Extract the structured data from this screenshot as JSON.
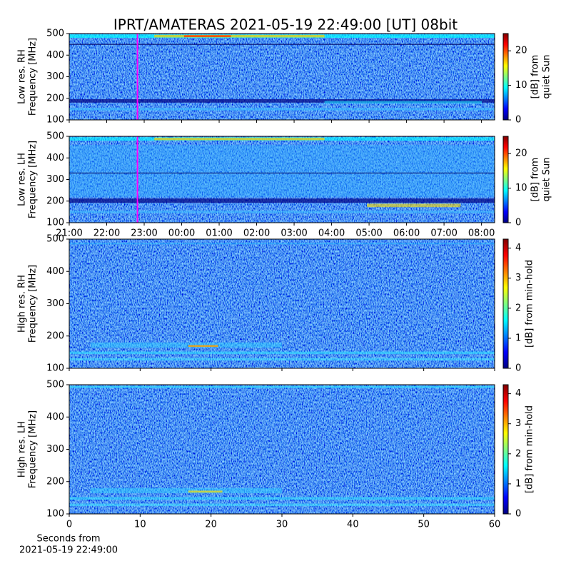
{
  "title": "IPRT/AMATERAS 2021-05-19 22:49:00 [UT]   08bit",
  "chart_data": [
    {
      "type": "spectrogram",
      "ylabel": [
        "Low res. RH",
        "Frequency [MHz]"
      ],
      "ylim": [
        100,
        500
      ],
      "yticks": [
        100,
        200,
        300,
        400,
        500
      ],
      "xlim": [
        21,
        32.35
      ],
      "marker_x": 22.82,
      "marker_color": "#ff00ff",
      "colorbar_label": [
        "[dB] from",
        "quiet Sun"
      ],
      "clim": [
        0,
        25
      ],
      "cticks": [
        0,
        10,
        20
      ]
    },
    {
      "type": "spectrogram",
      "ylabel": [
        "Low res. LH",
        "Frequency [MHz]"
      ],
      "ylim": [
        100,
        500
      ],
      "yticks": [
        100,
        200,
        300,
        400,
        500
      ],
      "xlim": [
        21,
        32.35
      ],
      "xticks": [
        {
          "value": 21,
          "label": "21:00"
        },
        {
          "value": 22,
          "label": "22:00"
        },
        {
          "value": 23,
          "label": "23:00"
        },
        {
          "value": 24,
          "label": "00:00"
        },
        {
          "value": 25,
          "label": "01:00"
        },
        {
          "value": 26,
          "label": "02:00"
        },
        {
          "value": 27,
          "label": "03:00"
        },
        {
          "value": 28,
          "label": "04:00"
        },
        {
          "value": 29,
          "label": "05:00"
        },
        {
          "value": 30,
          "label": "06:00"
        },
        {
          "value": 31,
          "label": "07:00"
        },
        {
          "value": 32,
          "label": "08:00"
        }
      ],
      "marker_x": 22.82,
      "marker_color": "#ff00ff",
      "colorbar_label": [
        "[dB] from",
        "quiet Sun"
      ],
      "clim": [
        0,
        25
      ],
      "cticks": [
        0,
        10,
        20
      ]
    },
    {
      "type": "spectrogram",
      "ylabel": [
        "High res. RH",
        "Frequency [MHz]"
      ],
      "ylim": [
        100,
        500
      ],
      "yticks": [
        100,
        200,
        300,
        400,
        500
      ],
      "xlim": [
        0,
        60
      ],
      "colorbar_label": [
        "[dB] from min-hold"
      ],
      "clim": [
        0,
        4.3
      ],
      "cticks": [
        0,
        1,
        2,
        3,
        4
      ]
    },
    {
      "type": "spectrogram",
      "ylabel": [
        "High res. LH",
        "Frequency [MHz]"
      ],
      "ylim": [
        100,
        500
      ],
      "yticks": [
        100,
        200,
        300,
        400,
        500
      ],
      "xlim": [
        0,
        60
      ],
      "xticks": [
        0,
        10,
        20,
        30,
        40,
        50,
        60
      ],
      "xlabel": [
        "Seconds from",
        "2021-05-19 22:49:00"
      ],
      "colorbar_label": [
        "[dB] from min-hold"
      ],
      "clim": [
        0,
        4.3
      ],
      "cticks": [
        0,
        1,
        2,
        3,
        4
      ]
    }
  ]
}
